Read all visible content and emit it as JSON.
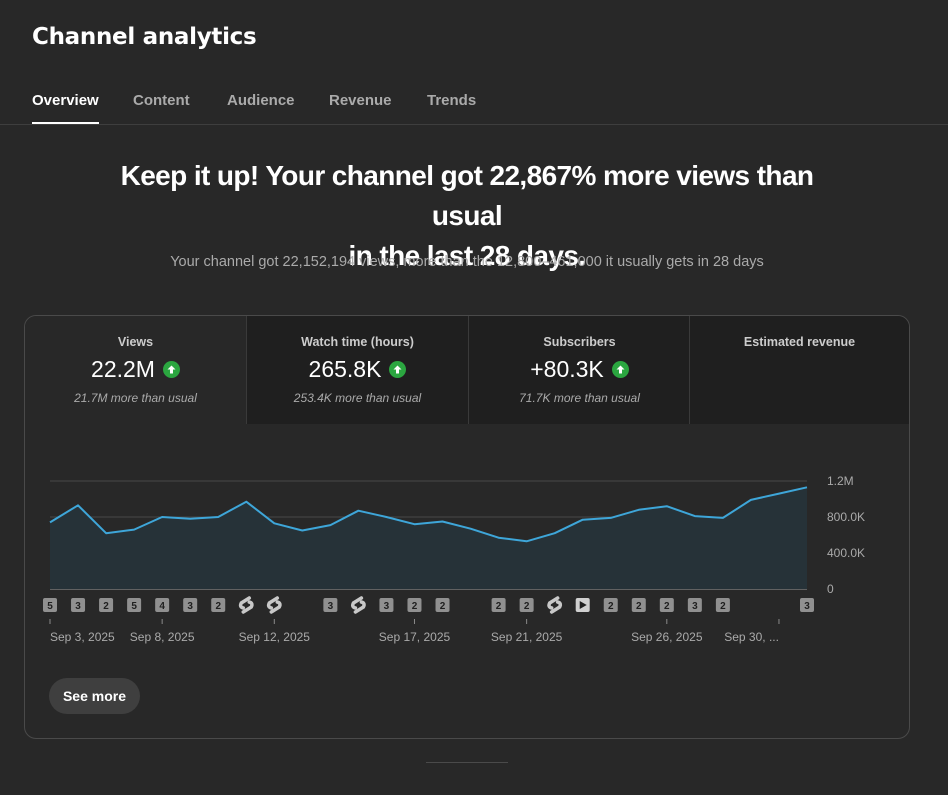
{
  "header": {
    "title": "Channel analytics"
  },
  "tabs": [
    {
      "label": "Overview",
      "active": true
    },
    {
      "label": "Content",
      "active": false
    },
    {
      "label": "Audience",
      "active": false
    },
    {
      "label": "Revenue",
      "active": false
    },
    {
      "label": "Trends",
      "active": false
    }
  ],
  "headline": {
    "line1": "Keep it up! Your channel got 22,867% more views than usual",
    "line2": "in the last 28 days."
  },
  "subline": "Your channel got 22,152,194 views, more than the 12,800–461,000 it usually gets in 28 days",
  "metrics": [
    {
      "label": "Views",
      "value": "22.2M",
      "compare": "21.7M more than usual",
      "trend": "up",
      "icon": "arrow-up-icon"
    },
    {
      "label": "Watch time (hours)",
      "value": "265.8K",
      "compare": "253.4K more than usual",
      "trend": "up",
      "icon": "arrow-up-icon"
    },
    {
      "label": "Subscribers",
      "value": "+80.3K",
      "compare": "71.7K more than usual",
      "trend": "up",
      "icon": "arrow-up-icon"
    },
    {
      "label": "Estimated revenue",
      "value": "",
      "compare": ""
    }
  ],
  "colors": {
    "line": "#3ea6d9",
    "area": "#263238",
    "up": "#2ba640",
    "marker": "#909090"
  },
  "chart_data": {
    "type": "area",
    "y_tick_labels": [
      "1.2M",
      "800.0K",
      "400.0K",
      "0"
    ],
    "y_ticks": [
      1200000,
      800000,
      400000,
      0
    ],
    "ylim": [
      0,
      1200000
    ],
    "x_tick_labels": [
      "Sep 3, 2025",
      "Sep 8, 2025",
      "Sep 12, 2025",
      "Sep 17, 2025",
      "Sep 21, 2025",
      "Sep 26, 2025",
      "Sep 30, ..."
    ],
    "x_tick_days": [
      0,
      4,
      8,
      13,
      17,
      22,
      26
    ],
    "series": [
      {
        "values": [
          740000,
          930000,
          620000,
          660000,
          800000,
          780000,
          800000,
          970000,
          730000,
          650000,
          710000,
          870000,
          800000,
          720000,
          750000,
          670000,
          570000,
          530000,
          620000,
          770000,
          790000,
          880000,
          920000,
          810000,
          790000,
          990000,
          1060000,
          1130000
        ]
      }
    ],
    "markers": [
      {
        "day": 0,
        "kind": "count",
        "text": "5"
      },
      {
        "day": 1,
        "kind": "count",
        "text": "3"
      },
      {
        "day": 2,
        "kind": "count",
        "text": "2"
      },
      {
        "day": 3,
        "kind": "count",
        "text": "5"
      },
      {
        "day": 4,
        "kind": "count",
        "text": "4"
      },
      {
        "day": 5,
        "kind": "count",
        "text": "3"
      },
      {
        "day": 6,
        "kind": "count",
        "text": "2"
      },
      {
        "day": 7,
        "kind": "shorts",
        "text": ""
      },
      {
        "day": 8,
        "kind": "shorts",
        "text": ""
      },
      {
        "day": 10,
        "kind": "count",
        "text": "3"
      },
      {
        "day": 11,
        "kind": "shorts",
        "text": ""
      },
      {
        "day": 12,
        "kind": "count",
        "text": "3"
      },
      {
        "day": 13,
        "kind": "count",
        "text": "2"
      },
      {
        "day": 14,
        "kind": "count",
        "text": "2"
      },
      {
        "day": 16,
        "kind": "count",
        "text": "2"
      },
      {
        "day": 17,
        "kind": "count",
        "text": "2"
      },
      {
        "day": 18,
        "kind": "shorts",
        "text": ""
      },
      {
        "day": 19,
        "kind": "video",
        "text": ""
      },
      {
        "day": 20,
        "kind": "count",
        "text": "2"
      },
      {
        "day": 21,
        "kind": "count",
        "text": "2"
      },
      {
        "day": 22,
        "kind": "count",
        "text": "2"
      },
      {
        "day": 23,
        "kind": "count",
        "text": "3"
      },
      {
        "day": 24,
        "kind": "count",
        "text": "2"
      },
      {
        "day": 27,
        "kind": "count",
        "text": "3"
      }
    ]
  },
  "see_more": {
    "label": "See more"
  }
}
